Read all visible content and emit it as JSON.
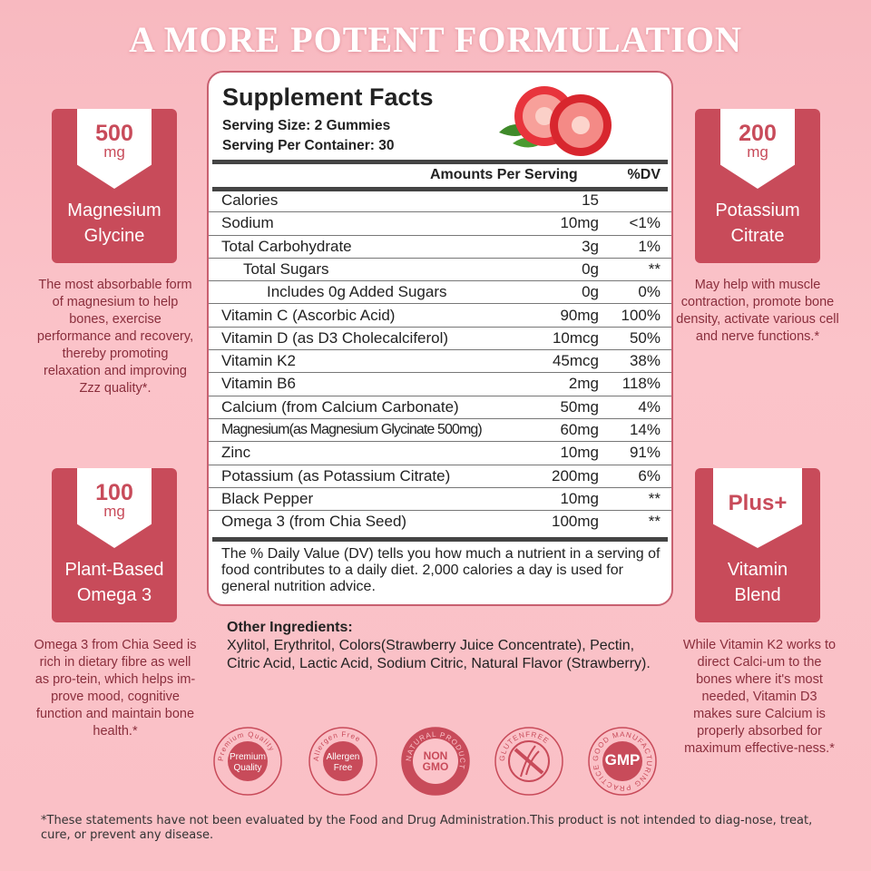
{
  "title": "A MORE POTENT FORMULATION",
  "facts": {
    "title": "Supplement Facts",
    "serving_size": "Serving Size: 2 Gummies",
    "servings": "Serving Per Container: 30",
    "col_amount": "Amounts Per Serving",
    "col_dv": "%DV",
    "rows": [
      {
        "name": "Calories",
        "amount": "15",
        "dv": ""
      },
      {
        "name": "Sodium",
        "amount": "10mg",
        "dv": "<1%"
      },
      {
        "name": "Total Carbohydrate",
        "amount": "3g",
        "dv": "1%"
      },
      {
        "name": "Total Sugars",
        "amount": "0g",
        "dv": "**"
      },
      {
        "name": "Includes 0g Added Sugars",
        "amount": "0g",
        "dv": "0%"
      },
      {
        "name": "Vitamin C  (Ascorbic Acid)",
        "amount": "90mg",
        "dv": "100%"
      },
      {
        "name": "Vitamin D (as D3 Cholecalciferol)",
        "amount": "10mcg",
        "dv": "50%"
      },
      {
        "name": "Vitamin K2",
        "amount": "45mcg",
        "dv": "38%"
      },
      {
        "name": "Vitamin B6",
        "amount": "2mg",
        "dv": "118%"
      },
      {
        "name": "Calcium (from Calcium Carbonate)",
        "amount": "50mg",
        "dv": "4%"
      },
      {
        "name": "Magnesium(as Magnesium Glycinate 500mg)",
        "amount": "60mg",
        "dv": "14%"
      },
      {
        "name": "Zinc",
        "amount": "10mg",
        "dv": "91%"
      },
      {
        "name": "Potassium (as Potassium Citrate)",
        "amount": "200mg",
        "dv": "6%"
      },
      {
        "name": "Black Pepper",
        "amount": "10mg",
        "dv": "**"
      },
      {
        "name": "Omega 3 (from Chia Seed)",
        "amount": "100mg",
        "dv": "**"
      }
    ],
    "note": "The % Daily Value (DV) tells you how much a nutrient in a serving of food contributes to a daily diet. 2,000 calories a day is used for general nutrition advice."
  },
  "features": [
    {
      "value": "500",
      "unit": "mg",
      "label": "Magnesium Glycine",
      "desc": "The most absorbable form of magnesium to help bones, exercise performance and recovery, thereby promoting relaxation and improving Zzz quality*."
    },
    {
      "value": "200",
      "unit": "mg",
      "label": "Potassium Citrate",
      "desc": "May help with muscle contraction, promote bone density, activate various cell and nerve functions.*"
    },
    {
      "value": "100",
      "unit": "mg",
      "label": "Plant-Based Omega 3",
      "desc": "Omega 3 from Chia Seed is rich in dietary fibre as well as pro-tein, which helps im-prove mood, cognitive function and maintain bone health.*"
    },
    {
      "value": "Plus+",
      "unit": "",
      "label": "Vitamin Blend",
      "desc": "While Vitamin K2 works to direct Calci-um to the bones where it's most needed, Vitamin D3 makes sure Calcium is properly absorbed for maximum effective-ness.*"
    }
  ],
  "other": {
    "title": "Other Ingredients:",
    "text": "Xylitol, Erythritol, Colors(Strawberry Juice Concentrate), Pectin, Citric Acid, Lactic Acid, Sodium Citric, Natural Flavor (Strawberry)."
  },
  "badges": [
    {
      "name": "premium-quality",
      "ring": "Premium Quality",
      "center": "Premium Quality"
    },
    {
      "name": "allergen-free",
      "ring": "Allergen Free",
      "center": "Allergen Free"
    },
    {
      "name": "non-gmo",
      "ring": "NATURAL PRODUCT",
      "center": "NON GMO"
    },
    {
      "name": "gluten-free",
      "ring": "GLUTENFREE",
      "center": ""
    },
    {
      "name": "gmp",
      "ring": "GOOD MANUFACTURING PRACTICE",
      "center": "GMP"
    }
  ],
  "colors": {
    "accent": "#c84b5a",
    "background": "#fac0c6",
    "text_desc": "#8a2e3c"
  },
  "disclaimer": "*These statements have not been evaluated by the Food and Drug Administration.This product is not intended to diag-nose, treat, cure, or prevent any disease."
}
